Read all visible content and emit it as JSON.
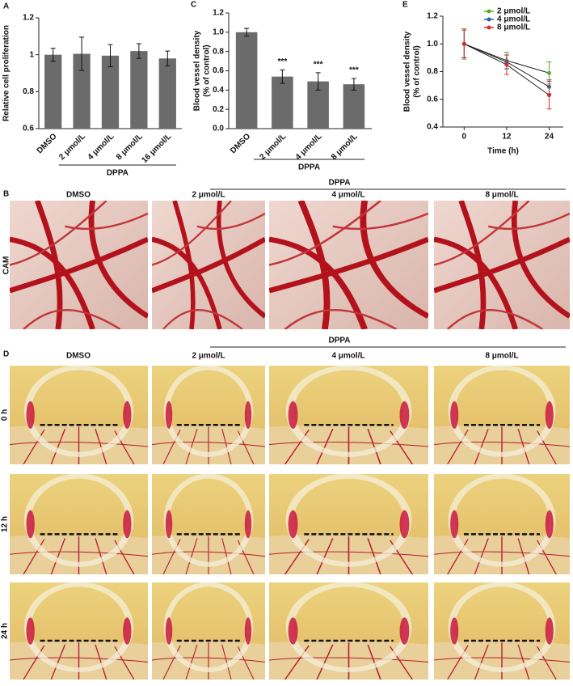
{
  "chart_data": [
    {
      "type": "bar",
      "panel": "A",
      "ylabel": [
        "Relative cell proliferation"
      ],
      "categories": [
        "DMSO",
        "2 μmol/L",
        "4 μmol/L",
        "8 μmol/L",
        "16 μmol/L"
      ],
      "values": [
        1.0,
        1.005,
        0.995,
        1.02,
        0.98
      ],
      "errors": [
        0.035,
        0.09,
        0.06,
        0.04,
        0.04
      ],
      "ylim": [
        0.6,
        1.2
      ],
      "yticks": [
        0.6,
        0.8,
        1,
        1.2
      ],
      "group_label": "DPPA",
      "color": "#6b6b6b"
    },
    {
      "type": "bar",
      "panel": "C",
      "ylabel": [
        "Blood vessel density",
        "(% of control)"
      ],
      "categories": [
        "DMSO",
        "2 μmol/L",
        "4 μmol/L",
        "8 μmol/L"
      ],
      "values": [
        1.0,
        0.54,
        0.49,
        0.46
      ],
      "errors": [
        0.04,
        0.07,
        0.09,
        0.06
      ],
      "annotations": [
        null,
        "***",
        "***",
        "***"
      ],
      "ylim": [
        0,
        1.2
      ],
      "yticks": [
        {
          "value": 0,
          "label": "0.0"
        },
        0.2,
        0.4,
        0.6,
        0.8,
        {
          "value": 1,
          "label": "1.0"
        },
        1.2
      ],
      "group_label": "DPPA",
      "color": "#6b6b6b"
    },
    {
      "type": "line",
      "panel": "E",
      "ylabel": [
        "Blood vessel density",
        "(% of control)"
      ],
      "xlabel": "Time (h)",
      "x": [
        0,
        12,
        24
      ],
      "xlim": [
        -6,
        28
      ],
      "xticks": [
        0,
        12,
        24
      ],
      "ylim": [
        0.4,
        1.2
      ],
      "yticks": [
        0.4,
        0.6,
        0.8,
        {
          "value": 1,
          "label": "1.0"
        },
        1.2
      ],
      "series": [
        {
          "name": "2 μmol/L",
          "color": "#5aab32",
          "values": [
            1.0,
            0.88,
            0.79
          ],
          "errors": [
            0.11,
            0.06,
            0.08
          ]
        },
        {
          "name": "4 μmol/L",
          "color": "#2f5fa8",
          "values": [
            1.0,
            0.87,
            0.69
          ],
          "errors": [
            0.1,
            0.05,
            0.05
          ]
        },
        {
          "name": "8 μmol/L",
          "color": "#d32f2f",
          "values": [
            1.0,
            0.85,
            0.63
          ],
          "errors": [
            0.1,
            0.07,
            0.1
          ]
        }
      ]
    }
  ],
  "panel_b": {
    "label": "B",
    "columns": [
      "DMSO",
      "2 μmol/L",
      "4 μmol/L",
      "8 μmol/L"
    ],
    "group_label": "DPPA",
    "row_label": "CAM"
  },
  "panel_d": {
    "label": "D",
    "columns": [
      "DMSO",
      "2 μmol/L",
      "4 μmol/L",
      "8 μmol/L"
    ],
    "group_label": "DPPA",
    "rows": [
      "0 h",
      "12 h",
      "24 h"
    ]
  }
}
